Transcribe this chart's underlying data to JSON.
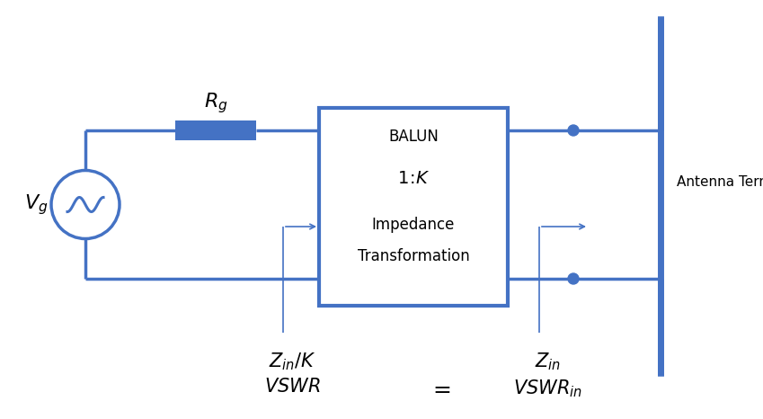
{
  "bg_color": "#ffffff",
  "line_color": "#4472C4",
  "resistor_color": "#4472C4",
  "box_color": "#4472C4",
  "dot_color": "#4472C4",
  "line_width": 2.5,
  "thick_lw": 5.0,
  "fig_width": 8.49,
  "fig_height": 4.66,
  "balun_text_line1": "BALUN",
  "balun_text_line2": "$1\\!:\\!K$",
  "balun_text_line3": "Impedance",
  "balun_text_line4": "Transformation",
  "rg_label": "$R_g$",
  "vg_label": "$V_g$",
  "zin_k_label": "$Z_{in} / K$",
  "vswr_label": "$VSWR$",
  "zin_label": "$Z_{in}$",
  "vswr_in_label": "$VSWR_{in}$",
  "equals_label": "$=$",
  "antenna_label": "Antenna Terminals"
}
